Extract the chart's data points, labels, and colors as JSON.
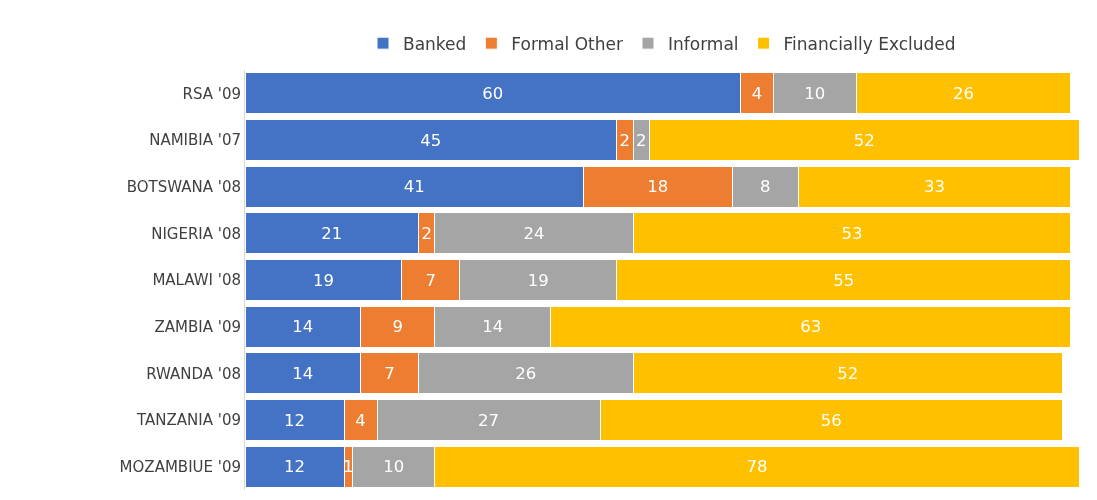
{
  "chart_data": {
    "type": "bar",
    "orientation": "horizontal",
    "stacked": true,
    "data_labels": true,
    "legend": "top",
    "categories": [
      "RSA '09",
      "NAMIBIA '07",
      "BOTSWANA '08",
      "NIGERIA '08",
      "MALAWI '08",
      "ZAMBIA '09",
      "RWANDA '08",
      "TANZANIA '09",
      "MOZAMBIUE '09"
    ],
    "series": [
      {
        "name": "Banked",
        "color": "#4472c4",
        "values": [
          60,
          45,
          41,
          21,
          19,
          14,
          14,
          12,
          12
        ]
      },
      {
        "name": "Formal Other",
        "color": "#ed7d31",
        "values": [
          4,
          2,
          18,
          2,
          7,
          9,
          7,
          4,
          1
        ]
      },
      {
        "name": "Informal",
        "color": "#a5a5a5",
        "values": [
          10,
          2,
          8,
          24,
          19,
          14,
          26,
          27,
          10
        ]
      },
      {
        "name": "Financially Excluded",
        "color": "#ffc000",
        "values": [
          26,
          52,
          33,
          53,
          55,
          63,
          52,
          56,
          78
        ]
      }
    ]
  }
}
